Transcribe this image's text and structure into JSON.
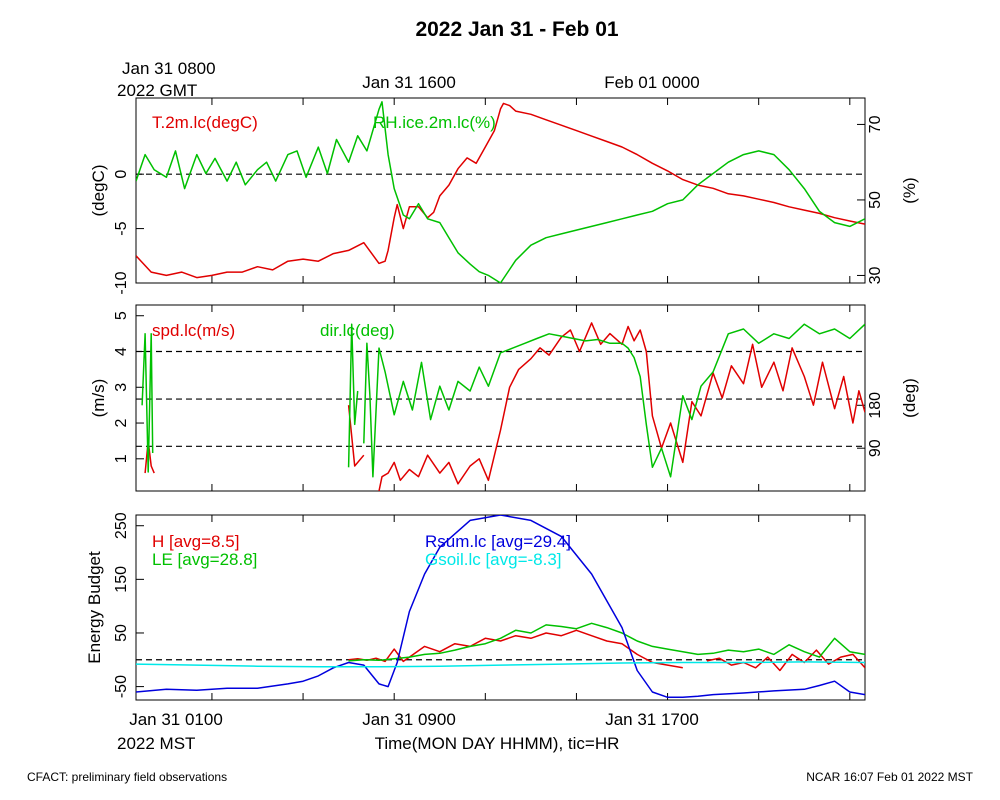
{
  "title": "2022 Jan 31 - Feb 01",
  "top_axis": {
    "label_line1": "Jan 31 0800",
    "label_line2": "2022 GMT",
    "ticks": [
      "Jan 31 1600",
      "Feb 01 0000"
    ]
  },
  "bottom_axis": {
    "ticks": [
      "Jan 31 0100",
      "Jan 31 0900",
      "Jan 31 1700"
    ],
    "year_label": "2022 MST",
    "title": "Time(MON DAY HHMM), tic=HR"
  },
  "footer": {
    "left": "CFACT: preliminary field observations",
    "right": "NCAR 16:07 Feb 01 2022 MST"
  },
  "colors": {
    "red": "#e00000",
    "green": "#00c000",
    "blue": "#0000dd",
    "cyan": "#00e8e8",
    "black": "#000000"
  },
  "chart_data": [
    {
      "type": "line",
      "title": "",
      "xlabel": "",
      "ylabel": "(degC)",
      "ylabel_right": "(%)",
      "xlim": [
        0.0,
        24.0
      ],
      "ylim": [
        -10,
        7
      ],
      "ylim_right": [
        28,
        77
      ],
      "yticks": [
        -10,
        -5,
        0
      ],
      "yticks_right": [
        30,
        50,
        70
      ],
      "dashed_lines": [
        0
      ],
      "legend": [
        "T.2m.lc(degC)",
        "RH.ice.2m.lc(%)"
      ],
      "series": [
        {
          "name": "T.2m.lc(degC)",
          "color": "red",
          "axis": "left",
          "x": [
            0.0,
            0.5,
            1.0,
            1.5,
            2.0,
            2.5,
            3.0,
            3.5,
            4.0,
            4.5,
            5.0,
            5.5,
            6.0,
            6.5,
            7.0,
            7.5,
            8.0,
            8.2,
            8.3,
            8.5,
            8.6,
            8.8,
            9.0,
            9.3,
            9.6,
            9.8,
            10.0,
            10.3,
            10.6,
            10.9,
            11.2,
            11.5,
            11.8,
            12.0,
            12.1,
            12.3,
            12.5,
            13.0,
            13.5,
            14.0,
            14.5,
            15.0,
            15.5,
            16.0,
            16.5,
            17.0,
            17.5,
            18.0,
            18.5,
            19.0,
            19.5,
            20.0,
            20.5,
            21.0,
            21.5,
            22.0,
            22.5,
            23.0,
            23.5,
            24.0
          ],
          "values": [
            -7.5,
            -9.0,
            -9.3,
            -9.0,
            -9.5,
            -9.3,
            -9.0,
            -9.0,
            -8.5,
            -8.8,
            -8.0,
            -7.8,
            -8.0,
            -7.3,
            -7.0,
            -6.3,
            -8.2,
            -8.0,
            -7.0,
            -4.0,
            -2.8,
            -5.0,
            -3.0,
            -3.0,
            -4.0,
            -3.5,
            -2.0,
            -1.0,
            0.5,
            1.5,
            1.0,
            2.5,
            4.0,
            6.0,
            6.5,
            6.3,
            5.8,
            5.5,
            5.0,
            4.5,
            4.0,
            3.5,
            3.0,
            2.5,
            1.8,
            1.0,
            0.3,
            -0.5,
            -1.0,
            -1.3,
            -1.8,
            -2.0,
            -2.3,
            -2.6,
            -3.0,
            -3.3,
            -3.6,
            -4.0,
            -4.3,
            -4.6
          ]
        },
        {
          "name": "RH.ice.2m.lc(%)",
          "color": "green",
          "axis": "right",
          "x": [
            0.0,
            0.3,
            0.6,
            1.0,
            1.3,
            1.6,
            2.0,
            2.3,
            2.6,
            3.0,
            3.3,
            3.6,
            4.0,
            4.3,
            4.6,
            5.0,
            5.3,
            5.6,
            6.0,
            6.3,
            6.6,
            7.0,
            7.3,
            7.6,
            8.0,
            8.1,
            8.3,
            8.5,
            8.8,
            9.0,
            9.3,
            9.6,
            10.0,
            10.3,
            10.6,
            11.0,
            11.3,
            11.6,
            12.0,
            12.5,
            13.0,
            13.5,
            14.0,
            14.5,
            15.0,
            15.5,
            16.0,
            16.5,
            17.0,
            17.5,
            18.0,
            18.5,
            19.0,
            19.5,
            20.0,
            20.5,
            21.0,
            21.5,
            22.0,
            22.5,
            23.0,
            23.5,
            24.0
          ],
          "values": [
            55,
            62,
            58,
            56,
            63,
            53,
            62,
            57,
            61,
            55,
            60,
            54,
            58,
            60,
            55,
            62,
            63,
            56,
            64,
            57,
            66,
            60,
            67,
            63,
            74,
            76,
            62,
            53,
            46,
            45,
            49,
            45,
            44,
            40,
            36,
            33,
            31,
            30,
            28,
            34,
            38,
            40,
            41,
            42,
            43,
            44,
            45,
            46,
            47,
            49,
            50,
            54,
            57,
            60,
            62,
            63,
            62,
            58,
            53,
            47,
            44,
            43,
            45
          ]
        }
      ]
    },
    {
      "type": "line",
      "title": "",
      "xlabel": "",
      "ylabel": "(m/s)",
      "ylabel_right": "(deg)",
      "xlim": [
        0.0,
        24.0
      ],
      "ylim": [
        0.1,
        5.3
      ],
      "ylim_right": [
        0.23,
        390.3
      ],
      "yticks": [
        1,
        2,
        3,
        4,
        5
      ],
      "yticks_right": [
        90,
        180
      ],
      "dashed_lines": [
        1.35,
        2.67,
        4.0
      ],
      "legend": [
        "spd.lc(m/s)",
        "dir.lc(deg)"
      ],
      "series": [
        {
          "name": "spd.lc(m/s)",
          "color": "red",
          "axis": "left",
          "x": [
            0.3,
            0.4,
            0.5,
            0.6,
            null,
            7.0,
            7.2,
            7.5,
            null,
            7.7,
            null,
            8.0,
            8.1,
            8.3,
            8.5,
            8.7,
            9.0,
            9.3,
            9.6,
            10.0,
            10.3,
            10.6,
            11.0,
            11.3,
            11.6,
            12.0,
            12.3,
            12.6,
            13.0,
            13.3,
            13.6,
            14.0,
            14.3,
            14.6,
            15.0,
            15.3,
            15.6,
            16.0,
            16.2,
            16.4,
            16.6,
            16.8,
            17.0,
            17.3,
            17.6,
            18.0,
            18.3,
            18.6,
            19.0,
            19.3,
            19.6,
            20.0,
            20.3,
            20.6,
            21.0,
            21.3,
            21.6,
            22.0,
            22.3,
            22.6,
            23.0,
            23.3,
            23.6,
            23.8,
            24.0
          ],
          "values": [
            0.6,
            1.5,
            0.8,
            0.6,
            null,
            2.5,
            0.8,
            1.1,
            null,
            0.9,
            null,
            0.1,
            0.5,
            0.6,
            0.9,
            0.4,
            0.7,
            0.5,
            1.1,
            0.6,
            0.9,
            0.3,
            0.8,
            1.0,
            0.4,
            1.8,
            3.0,
            3.5,
            3.8,
            4.1,
            3.9,
            4.4,
            4.6,
            4.0,
            4.8,
            4.2,
            4.5,
            4.2,
            4.7,
            4.3,
            4.6,
            4.0,
            2.2,
            1.3,
            2.0,
            0.9,
            2.6,
            2.2,
            3.4,
            2.7,
            3.6,
            3.1,
            4.2,
            3.0,
            3.7,
            2.9,
            4.1,
            3.3,
            2.5,
            3.7,
            2.4,
            3.3,
            2.0,
            2.9,
            2.3
          ]
        },
        {
          "name": "dir.lc(deg)",
          "color": "green",
          "axis": "right",
          "x": [
            0.2,
            0.3,
            0.4,
            0.5,
            0.55,
            null,
            7.0,
            7.1,
            7.2,
            7.3,
            null,
            7.5,
            7.6,
            7.7,
            7.8,
            8.0,
            8.2,
            8.5,
            8.8,
            9.1,
            9.4,
            9.7,
            10.0,
            10.3,
            10.6,
            11.0,
            11.3,
            11.6,
            12.0,
            12.4,
            12.8,
            13.2,
            13.6,
            14.0,
            14.4,
            14.8,
            15.2,
            15.6,
            16.0,
            16.2,
            16.4,
            16.6,
            16.8,
            17.0,
            17.3,
            17.6,
            18.0,
            18.3,
            18.6,
            19.0,
            19.5,
            20.0,
            20.5,
            21.0,
            21.5,
            22.0,
            22.5,
            23.0,
            23.5,
            24.0
          ],
          "values": [
            180,
            330,
            40,
            330,
            80,
            null,
            50,
            350,
            140,
            210,
            null,
            100,
            310,
            200,
            30,
            300,
            250,
            160,
            230,
            170,
            270,
            150,
            220,
            170,
            230,
            210,
            260,
            220,
            290,
            300,
            310,
            320,
            330,
            325,
            320,
            315,
            318,
            310,
            310,
            300,
            280,
            240,
            140,
            50,
            90,
            30,
            200,
            150,
            220,
            250,
            330,
            340,
            310,
            330,
            320,
            350,
            330,
            340,
            320,
            350
          ]
        }
      ]
    },
    {
      "type": "line",
      "title": "",
      "xlabel": "Time(MON DAY HHMM), tic=HR",
      "ylabel": "Energy Budget",
      "xlim": [
        0.0,
        24.0
      ],
      "ylim": [
        -75,
        270
      ],
      "yticks": [
        -50,
        50,
        150,
        250
      ],
      "dashed_lines": [
        0
      ],
      "legend": [
        "H [avg=8.5]",
        "LE [avg=28.8]",
        "Rsum.lc [avg=29.4]",
        "Gsoil.lc [avg=-8.3]"
      ],
      "series": [
        {
          "name": "H [avg=8.5]",
          "color": "red",
          "x": [
            7.0,
            7.3,
            7.6,
            7.9,
            8.2,
            8.5,
            8.8,
            9.0,
            9.5,
            10.0,
            10.5,
            11.0,
            11.5,
            12.0,
            12.5,
            13.0,
            13.5,
            14.0,
            14.5,
            15.0,
            15.5,
            16.0,
            16.5,
            17.0,
            17.5,
            18.0,
            null,
            18.8,
            19.2,
            19.6,
            20.0,
            20.4,
            20.8,
            21.2,
            21.6,
            22.0,
            22.4,
            22.8,
            23.2,
            23.6,
            24.0
          ],
          "values": [
            0,
            2,
            -1,
            3,
            -3,
            20,
            -3,
            5,
            25,
            15,
            30,
            25,
            40,
            35,
            45,
            40,
            50,
            45,
            55,
            45,
            35,
            30,
            10,
            -5,
            -10,
            -15,
            null,
            -2,
            3,
            -10,
            -5,
            -15,
            5,
            -20,
            10,
            -5,
            18,
            -8,
            5,
            10,
            -15
          ]
        },
        {
          "name": "LE [avg=28.8]",
          "color": "green",
          "x": [
            7.0,
            7.5,
            8.0,
            8.5,
            9.0,
            9.5,
            10.0,
            10.5,
            11.0,
            11.5,
            12.0,
            12.5,
            13.0,
            13.5,
            14.0,
            14.5,
            15.0,
            15.5,
            16.0,
            16.5,
            17.0,
            17.5,
            18.0,
            18.5,
            19.0,
            19.5,
            20.0,
            20.5,
            21.0,
            21.5,
            22.0,
            22.5,
            23.0,
            23.5,
            24.0
          ],
          "values": [
            -2,
            0,
            -1,
            2,
            5,
            10,
            12,
            18,
            25,
            30,
            40,
            55,
            50,
            65,
            62,
            58,
            68,
            60,
            50,
            35,
            25,
            20,
            15,
            10,
            12,
            18,
            15,
            20,
            10,
            28,
            15,
            5,
            40,
            15,
            10
          ]
        },
        {
          "name": "Rsum.lc [avg=29.4]",
          "color": "blue",
          "x": [
            0.0,
            1.0,
            2.0,
            3.0,
            4.0,
            5.0,
            5.5,
            6.0,
            6.5,
            7.0,
            7.5,
            8.0,
            8.3,
            8.6,
            9.0,
            9.5,
            10.0,
            11.0,
            12.0,
            13.0,
            14.0,
            15.0,
            16.0,
            16.5,
            17.0,
            17.5,
            18.0,
            18.5,
            19.0,
            20.0,
            21.0,
            22.0,
            22.5,
            23.0,
            23.5,
            24.0
          ],
          "values": [
            -60,
            -55,
            -57,
            -53,
            -53,
            -45,
            -40,
            -30,
            -15,
            -5,
            -10,
            -45,
            -50,
            -5,
            90,
            160,
            210,
            260,
            270,
            260,
            230,
            160,
            60,
            -20,
            -60,
            -70,
            -70,
            -68,
            -65,
            -62,
            -58,
            -55,
            -48,
            -40,
            -60,
            -65
          ]
        },
        {
          "name": "Gsoil.lc [avg=-8.3]",
          "color": "cyan",
          "x": [
            0.0,
            2.0,
            4.0,
            6.0,
            8.0,
            10.0,
            12.0,
            14.0,
            16.0,
            18.0,
            20.0,
            22.0,
            24.0
          ],
          "values": [
            -8,
            -10,
            -12,
            -13,
            -13,
            -12,
            -10,
            -8,
            -6,
            -5,
            -5,
            -4,
            -5
          ]
        }
      ]
    }
  ]
}
